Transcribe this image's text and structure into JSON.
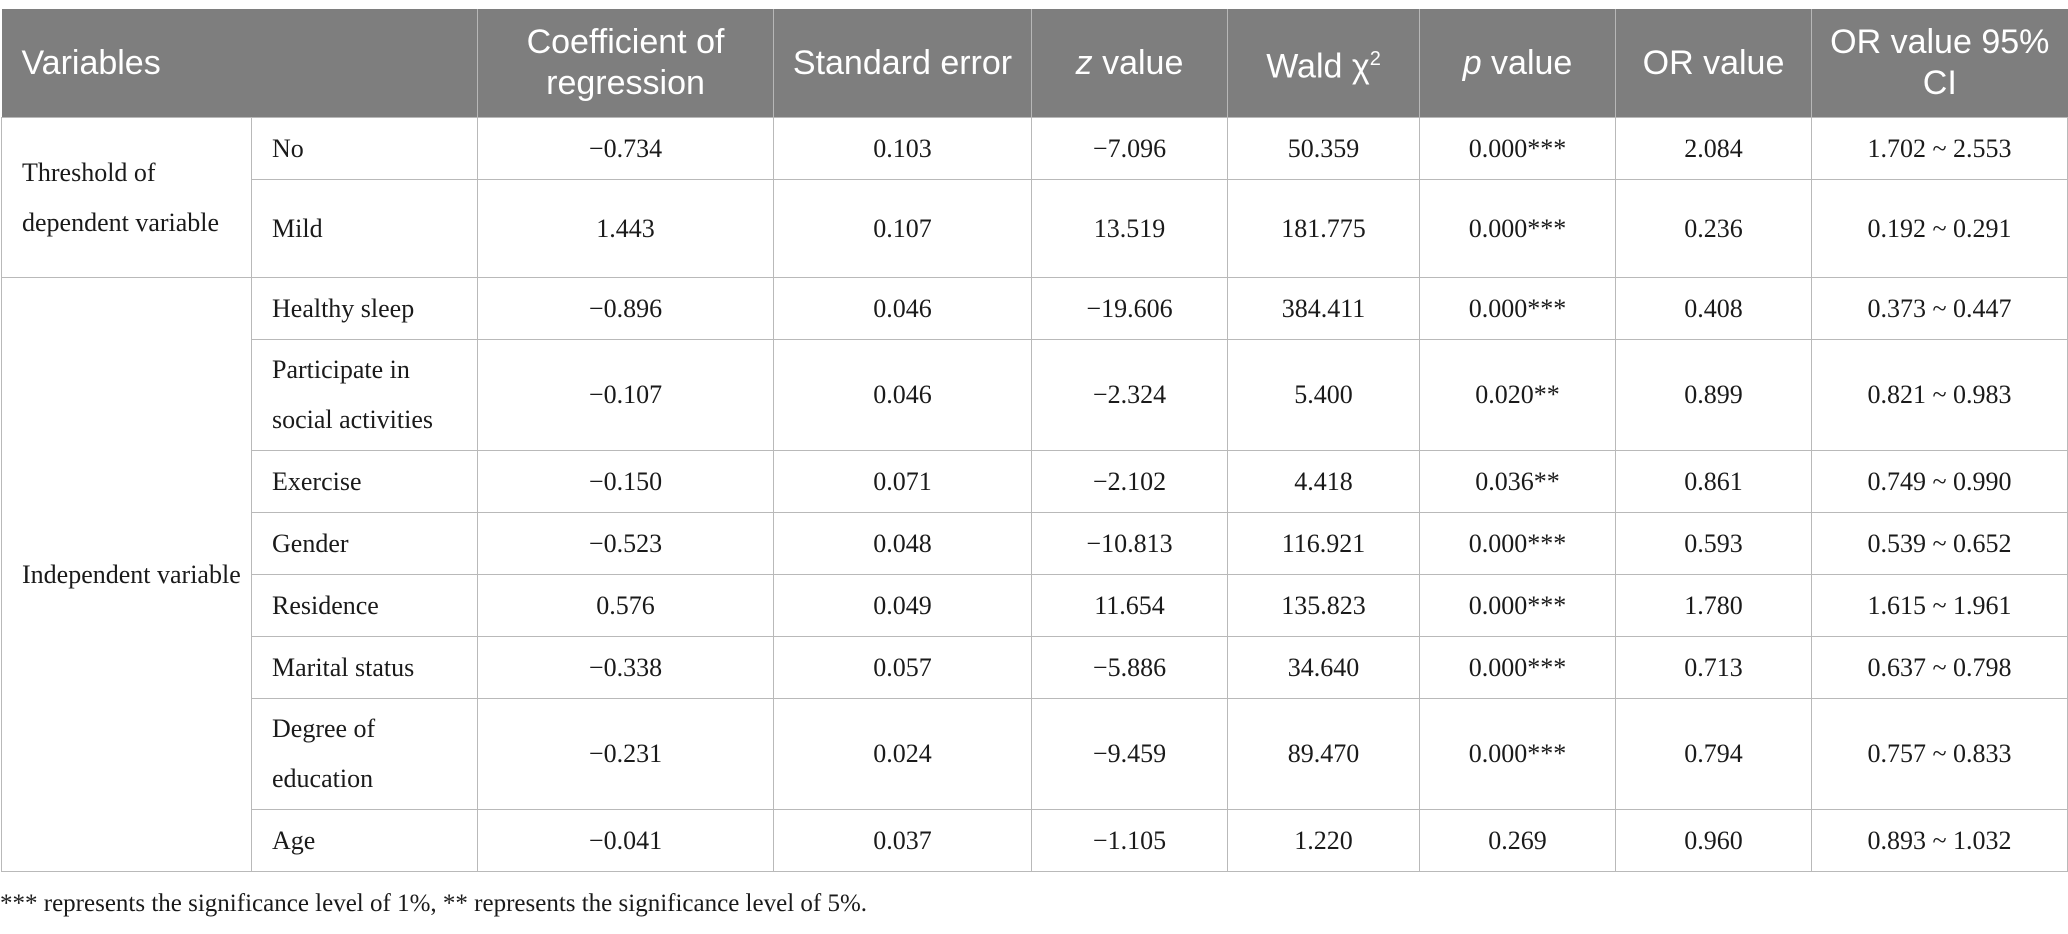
{
  "headers": {
    "variables": "Variables",
    "coef": "Coefficient of regression",
    "se": "Standard error",
    "z_italic": "z",
    "z_rest": " value",
    "wald": "Wald χ",
    "wald_sup": "2",
    "p_italic": "p",
    "p_rest": " value",
    "or": "OR value",
    "ci": "OR value 95% CI"
  },
  "groups": {
    "threshold": "Threshold of dependent variable",
    "independent": "Independent variable"
  },
  "rows": [
    {
      "name": "No",
      "coef": "−0.734",
      "se": "0.103",
      "z": "−7.096",
      "wald": "50.359",
      "p": "0.000***",
      "or": "2.084",
      "ci": "1.702 ~ 2.553"
    },
    {
      "name": "Mild",
      "coef": "1.443",
      "se": "0.107",
      "z": "13.519",
      "wald": "181.775",
      "p": "0.000***",
      "or": "0.236",
      "ci": "0.192 ~ 0.291"
    },
    {
      "name": "Healthy sleep",
      "coef": "−0.896",
      "se": "0.046",
      "z": "−19.606",
      "wald": "384.411",
      "p": "0.000***",
      "or": "0.408",
      "ci": "0.373 ~ 0.447"
    },
    {
      "name": "Participate in social activities",
      "coef": "−0.107",
      "se": "0.046",
      "z": "−2.324",
      "wald": "5.400",
      "p": "0.020**",
      "or": "0.899",
      "ci": "0.821 ~ 0.983"
    },
    {
      "name": "Exercise",
      "coef": "−0.150",
      "se": "0.071",
      "z": "−2.102",
      "wald": "4.418",
      "p": "0.036**",
      "or": "0.861",
      "ci": "0.749 ~ 0.990"
    },
    {
      "name": "Gender",
      "coef": "−0.523",
      "se": "0.048",
      "z": "−10.813",
      "wald": "116.921",
      "p": "0.000***",
      "or": "0.593",
      "ci": "0.539 ~ 0.652"
    },
    {
      "name": "Residence",
      "coef": "0.576",
      "se": "0.049",
      "z": "11.654",
      "wald": "135.823",
      "p": "0.000***",
      "or": "1.780",
      "ci": "1.615 ~ 1.961"
    },
    {
      "name": "Marital status",
      "coef": "−0.338",
      "se": "0.057",
      "z": "−5.886",
      "wald": "34.640",
      "p": "0.000***",
      "or": "0.713",
      "ci": "0.637 ~ 0.798"
    },
    {
      "name": "Degree of education",
      "coef": "−0.231",
      "se": "0.024",
      "z": "−9.459",
      "wald": "89.470",
      "p": "0.000***",
      "or": "0.794",
      "ci": "0.757 ~ 0.833"
    },
    {
      "name": "Age",
      "coef": "−0.041",
      "se": "0.037",
      "z": "−1.105",
      "wald": "1.220",
      "p": "0.269",
      "or": "0.960",
      "ci": "0.893 ~ 1.032"
    }
  ],
  "footnote": "*** represents the significance level of 1%, ** represents the significance level of 5%.",
  "colors": {
    "header_bg": "#7e7e7e",
    "header_text": "#ffffff",
    "border": "#b9b9b9"
  }
}
